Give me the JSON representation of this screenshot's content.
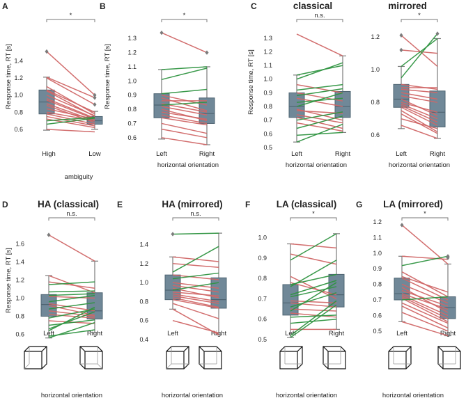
{
  "colors": {
    "box": "#708898",
    "boxEdge": "#4e6472",
    "whisker": "#7a7a7a",
    "slower_line": "#d06666",
    "faster_line": "#2e9440",
    "flier": "#7b7b7b",
    "text": "#222222"
  },
  "shared": {
    "ylabel": "Response time, RT [s]",
    "xlabel_orientation": "horizontal orientation",
    "xlabel_ambiguity": "ambiguity"
  },
  "chart_data": [
    {
      "panel": "A",
      "title": "",
      "type": "box-paired",
      "categories": [
        "High",
        "Low"
      ],
      "xlabel": "ambiguity",
      "ylabel": "Response time, RT [s]",
      "ylim": [
        0.55,
        1.6
      ],
      "yticks": [
        0.6,
        0.8,
        1.0,
        1.2,
        1.4
      ],
      "significance": "*",
      "box_stats": [
        {
          "whislo": 0.59,
          "q1": 0.78,
          "med": 0.92,
          "q3": 1.06,
          "whishi": 1.21,
          "fliers": [
            1.51
          ]
        },
        {
          "whislo": 0.6,
          "q1": 0.66,
          "med": 0.7,
          "q3": 0.75,
          "whishi": 0.81,
          "fliers": [
            1.0,
            0.97,
            0.89
          ]
        }
      ],
      "pairs": [
        [
          1.51,
          1.0
        ],
        [
          1.21,
          0.97
        ],
        [
          1.2,
          0.89
        ],
        [
          1.1,
          0.78
        ],
        [
          1.06,
          0.8
        ],
        [
          1.05,
          0.75
        ],
        [
          1.0,
          0.76
        ],
        [
          0.96,
          0.73
        ],
        [
          0.94,
          0.72
        ],
        [
          0.9,
          0.7
        ],
        [
          0.88,
          0.68
        ],
        [
          0.84,
          0.72
        ],
        [
          0.8,
          0.7
        ],
        [
          0.78,
          0.66
        ],
        [
          0.75,
          0.64
        ],
        [
          0.72,
          0.62
        ],
        [
          0.7,
          0.74
        ],
        [
          0.66,
          0.73
        ],
        [
          0.6,
          0.57
        ]
      ]
    },
    {
      "panel": "B",
      "title": "",
      "type": "box-paired",
      "categories": [
        "Left",
        "Right"
      ],
      "xlabel": "horizontal orientation",
      "ylabel": "Response time, RT [s]",
      "ylim": [
        0.55,
        1.36
      ],
      "yticks": [
        0.6,
        0.7,
        0.8,
        0.9,
        1.0,
        1.1,
        1.2,
        1.3
      ],
      "significance": "*",
      "box_stats": [
        {
          "whislo": 0.59,
          "q1": 0.74,
          "med": 0.83,
          "q3": 0.91,
          "whishi": 1.08,
          "fliers": [
            1.34
          ]
        },
        {
          "whislo": 0.55,
          "q1": 0.7,
          "med": 0.77,
          "q3": 0.88,
          "whishi": 1.1,
          "fliers": [
            1.2
          ]
        }
      ],
      "pairs": [
        [
          1.34,
          1.2
        ],
        [
          1.08,
          1.1
        ],
        [
          1.01,
          1.09
        ],
        [
          0.91,
          0.94
        ],
        [
          0.9,
          0.83
        ],
        [
          0.88,
          0.79
        ],
        [
          0.86,
          0.86
        ],
        [
          0.84,
          0.78
        ],
        [
          0.83,
          0.85
        ],
        [
          0.82,
          0.76
        ],
        [
          0.8,
          0.72
        ],
        [
          0.78,
          0.73
        ],
        [
          0.76,
          0.7
        ],
        [
          0.74,
          0.69
        ],
        [
          0.7,
          0.63
        ],
        [
          0.66,
          0.6
        ],
        [
          0.6,
          0.55
        ]
      ]
    },
    {
      "panel": "C",
      "title": "classical",
      "type": "box-paired",
      "categories": [
        "Left",
        "Right"
      ],
      "xlabel": "horizontal orientation",
      "ylabel": "Response time, RT [s]",
      "ylim": [
        0.5,
        1.36
      ],
      "yticks": [
        0.5,
        0.6,
        0.7,
        0.8,
        0.9,
        1.0,
        1.1,
        1.2,
        1.3
      ],
      "significance": "n.s.",
      "box_stats": [
        {
          "whislo": 0.54,
          "q1": 0.72,
          "med": 0.8,
          "q3": 0.9,
          "whishi": 1.03,
          "fliers": []
        },
        {
          "whislo": 0.61,
          "q1": 0.72,
          "med": 0.8,
          "q3": 0.91,
          "whishi": 1.17,
          "fliers": []
        }
      ],
      "pairs": [
        [
          1.33,
          1.17
        ],
        [
          1.03,
          1.1
        ],
        [
          1.0,
          1.12
        ],
        [
          0.96,
          0.9
        ],
        [
          0.92,
          0.96
        ],
        [
          0.9,
          0.84
        ],
        [
          0.88,
          0.93
        ],
        [
          0.86,
          0.8
        ],
        [
          0.83,
          0.86
        ],
        [
          0.8,
          0.9
        ],
        [
          0.78,
          0.7
        ],
        [
          0.77,
          0.75
        ],
        [
          0.74,
          0.68
        ],
        [
          0.72,
          0.64
        ],
        [
          0.7,
          0.76
        ],
        [
          0.68,
          0.62
        ],
        [
          0.64,
          0.73
        ],
        [
          0.59,
          0.61
        ],
        [
          0.54,
          0.67
        ]
      ]
    },
    {
      "panel": "C2",
      "title": "mirrored",
      "type": "box-paired",
      "categories": [
        "Left",
        "Right"
      ],
      "xlabel": "horizontal orientation",
      "ylabel": "",
      "ylim": [
        0.55,
        1.26
      ],
      "yticks": [
        0.6,
        0.8,
        1.0,
        1.2
      ],
      "significance": "*",
      "box_stats": [
        {
          "whislo": 0.64,
          "q1": 0.77,
          "med": 0.82,
          "q3": 0.91,
          "whishi": 1.02,
          "fliers": [
            1.21,
            1.12
          ]
        },
        {
          "whislo": 0.58,
          "q1": 0.65,
          "med": 0.74,
          "q3": 0.87,
          "whishi": 1.19,
          "fliers": [
            1.22
          ]
        }
      ],
      "pairs": [
        [
          1.21,
          1.02
        ],
        [
          1.12,
          1.1
        ],
        [
          1.02,
          1.19
        ],
        [
          0.95,
          1.22
        ],
        [
          0.91,
          0.88
        ],
        [
          0.89,
          0.89
        ],
        [
          0.88,
          0.86
        ],
        [
          0.86,
          0.82
        ],
        [
          0.84,
          0.8
        ],
        [
          0.82,
          0.72
        ],
        [
          0.8,
          0.74
        ],
        [
          0.79,
          0.7
        ],
        [
          0.78,
          0.68
        ],
        [
          0.77,
          0.66
        ],
        [
          0.75,
          0.62
        ],
        [
          0.73,
          0.61
        ],
        [
          0.7,
          0.64
        ],
        [
          0.66,
          0.58
        ]
      ]
    },
    {
      "panel": "D",
      "title": "HA (classical)",
      "type": "box-paired",
      "categories": [
        "Left",
        "Right"
      ],
      "xlabel": "horizontal orientation",
      "ylabel": "Response time, RT [s]",
      "ylim": [
        0.55,
        1.72
      ],
      "yticks": [
        0.6,
        0.8,
        1.0,
        1.2,
        1.4,
        1.6
      ],
      "significance": "n.s.",
      "box_stats": [
        {
          "whislo": 0.56,
          "q1": 0.8,
          "med": 0.93,
          "q3": 1.04,
          "whishi": 1.25,
          "fliers": [
            1.7
          ]
        },
        {
          "whislo": 0.62,
          "q1": 0.77,
          "med": 0.86,
          "q3": 1.06,
          "whishi": 1.41,
          "fliers": []
        }
      ],
      "pairs": [
        [
          1.7,
          1.41
        ],
        [
          1.25,
          1.06
        ],
        [
          1.18,
          1.11
        ],
        [
          1.15,
          1.18
        ],
        [
          1.07,
          1.08
        ],
        [
          1.03,
          1.05
        ],
        [
          1.02,
          1.0
        ],
        [
          0.96,
          1.03
        ],
        [
          0.94,
          0.86
        ],
        [
          0.92,
          0.81
        ],
        [
          0.88,
          0.95
        ],
        [
          0.86,
          0.8
        ],
        [
          0.82,
          0.78
        ],
        [
          0.78,
          0.88
        ],
        [
          0.75,
          0.72
        ],
        [
          0.7,
          0.76
        ],
        [
          0.66,
          0.85
        ],
        [
          0.64,
          0.9
        ],
        [
          0.58,
          0.65
        ],
        [
          0.56,
          0.73
        ]
      ]
    },
    {
      "panel": "E",
      "title": "HA (mirrored)",
      "type": "box-paired",
      "categories": [
        "Left",
        "Right"
      ],
      "xlabel": "horizontal orientation",
      "ylabel": "",
      "ylim": [
        0.4,
        1.55
      ],
      "yticks": [
        0.4,
        0.6,
        0.8,
        1.0,
        1.2,
        1.4
      ],
      "significance": "n.s.",
      "box_stats": [
        {
          "whislo": 0.72,
          "q1": 0.82,
          "med": 0.92,
          "q3": 1.08,
          "whishi": 1.27,
          "fliers": [
            1.51
          ]
        },
        {
          "whislo": 0.45,
          "q1": 0.73,
          "med": 0.82,
          "q3": 1.05,
          "whishi": 1.52,
          "fliers": []
        }
      ],
      "pairs": [
        [
          1.51,
          1.52
        ],
        [
          1.27,
          1.22
        ],
        [
          1.2,
          1.16
        ],
        [
          1.11,
          1.38
        ],
        [
          1.08,
          1.03
        ],
        [
          1.04,
          1.1
        ],
        [
          1.0,
          0.94
        ],
        [
          0.97,
          0.9
        ],
        [
          0.94,
          0.84
        ],
        [
          0.92,
          1.0
        ],
        [
          0.9,
          0.86
        ],
        [
          0.88,
          0.8
        ],
        [
          0.86,
          0.78
        ],
        [
          0.84,
          0.74
        ],
        [
          0.82,
          0.73
        ],
        [
          0.78,
          0.62
        ],
        [
          0.72,
          0.45
        ],
        [
          0.6,
          0.47
        ]
      ]
    },
    {
      "panel": "F",
      "title": "LA (classical)",
      "type": "box-paired",
      "categories": [
        "Left",
        "Right"
      ],
      "xlabel": "horizontal orientation",
      "ylabel": "",
      "ylim": [
        0.5,
        1.04
      ],
      "yticks": [
        0.5,
        0.6,
        0.7,
        0.8,
        0.9,
        1.0
      ],
      "significance": "*",
      "box_stats": [
        {
          "whislo": 0.51,
          "q1": 0.62,
          "med": 0.68,
          "q3": 0.77,
          "whishi": 0.97,
          "fliers": []
        },
        {
          "whislo": 0.55,
          "q1": 0.66,
          "med": 0.72,
          "q3": 0.82,
          "whishi": 1.02,
          "fliers": []
        }
      ],
      "pairs": [
        [
          0.97,
          0.95
        ],
        [
          0.92,
          0.87
        ],
        [
          0.89,
          1.02
        ],
        [
          0.81,
          0.7
        ],
        [
          0.78,
          0.72
        ],
        [
          0.77,
          0.82
        ],
        [
          0.76,
          0.89
        ],
        [
          0.72,
          0.79
        ],
        [
          0.71,
          0.76
        ],
        [
          0.69,
          0.68
        ],
        [
          0.68,
          0.66
        ],
        [
          0.66,
          0.73
        ],
        [
          0.65,
          0.64
        ],
        [
          0.64,
          0.78
        ],
        [
          0.63,
          0.61
        ],
        [
          0.61,
          0.62
        ],
        [
          0.58,
          0.6
        ],
        [
          0.55,
          0.55
        ],
        [
          0.52,
          0.69
        ],
        [
          0.51,
          0.67
        ]
      ]
    },
    {
      "panel": "G",
      "title": "LA (mirrored)",
      "type": "box-paired",
      "categories": [
        "Left",
        "Right"
      ],
      "xlabel": "horizontal orientation",
      "ylabel": "",
      "ylim": [
        0.45,
        1.2
      ],
      "yticks": [
        0.5,
        0.6,
        0.7,
        0.8,
        0.9,
        1.0,
        1.1,
        1.2
      ],
      "significance": "*",
      "box_stats": [
        {
          "whislo": 0.56,
          "q1": 0.7,
          "med": 0.74,
          "q3": 0.84,
          "whishi": 0.98,
          "fliers": [
            1.18
          ]
        },
        {
          "whislo": 0.47,
          "q1": 0.58,
          "med": 0.65,
          "q3": 0.72,
          "whishi": 0.93,
          "fliers": [
            0.98,
            0.97
          ]
        }
      ],
      "pairs": [
        [
          1.18,
          0.93
        ],
        [
          0.98,
          0.96
        ],
        [
          0.92,
          0.98
        ],
        [
          0.88,
          0.72
        ],
        [
          0.85,
          0.75
        ],
        [
          0.84,
          0.7
        ],
        [
          0.8,
          0.68
        ],
        [
          0.78,
          0.62
        ],
        [
          0.76,
          0.66
        ],
        [
          0.74,
          0.64
        ],
        [
          0.73,
          0.6
        ],
        [
          0.72,
          0.58
        ],
        [
          0.71,
          0.56
        ],
        [
          0.7,
          0.72
        ],
        [
          0.68,
          0.55
        ],
        [
          0.66,
          0.52
        ],
        [
          0.62,
          0.5
        ],
        [
          0.56,
          0.47
        ]
      ]
    }
  ]
}
